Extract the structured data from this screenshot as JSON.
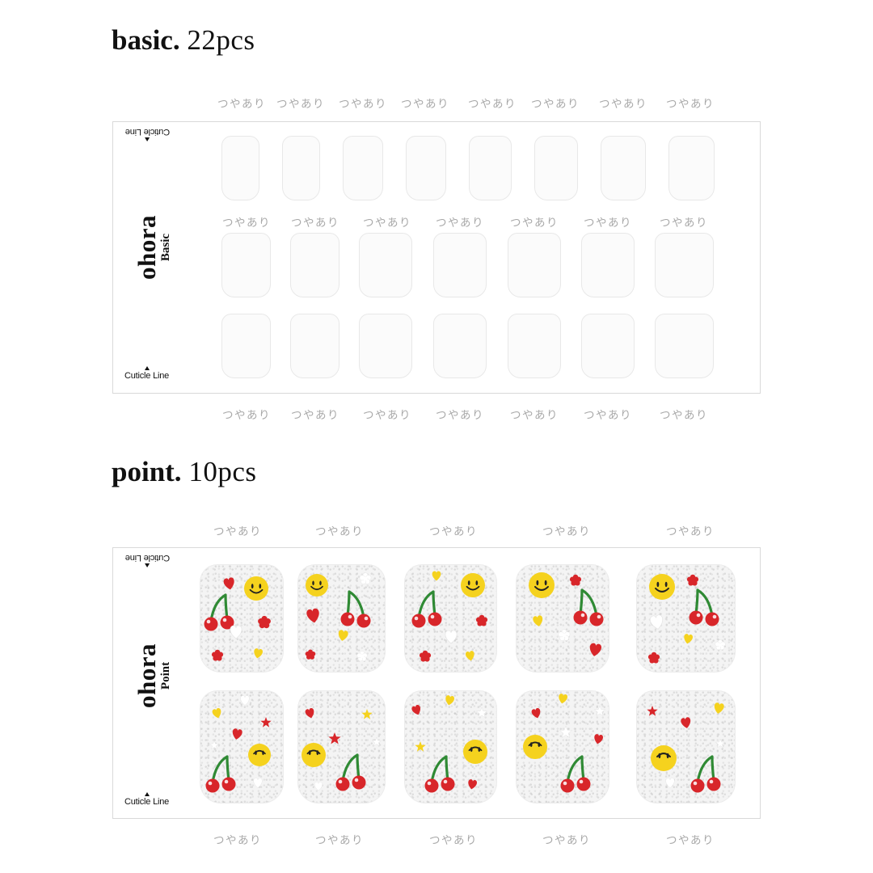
{
  "basic": {
    "title_bold": "basic.",
    "title_count": "22pcs",
    "gloss_label": "つやあり",
    "brand": "ohora",
    "line": "Basic",
    "cuticle_label": "Cuticle Line",
    "nail_count": 22
  },
  "point": {
    "title_bold": "point.",
    "title_count": "10pcs",
    "gloss_label": "つやあり",
    "brand": "ohora",
    "line": "Point",
    "cuticle_label": "Cuticle Line",
    "nail_count": 10,
    "motif_icons": [
      "smiley-face-icon",
      "cherry-icon",
      "heart-icon",
      "flower-icon",
      "star-icon"
    ]
  },
  "colors": {
    "red": "#d8262a",
    "yellow": "#f5d21e",
    "green": "#2f8a34",
    "white": "#ffffff",
    "gloss_text": "#a9a9a9"
  }
}
